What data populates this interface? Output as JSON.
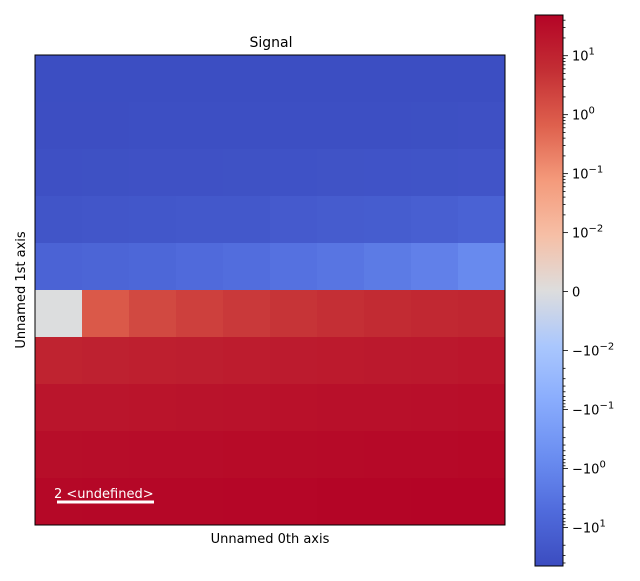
{
  "chart_data": {
    "type": "heatmap",
    "title": "Signal",
    "xlabel": "Unnamed 0th axis",
    "ylabel": "Unnamed 1st axis",
    "colormap": "coolwarm",
    "scale": "symlog",
    "linthresh": 0.01,
    "clim": [
      -45,
      49
    ],
    "rows": 10,
    "cols": 10,
    "values": [
      [
        -40,
        -40,
        -40,
        -40,
        -40,
        -40,
        -40,
        -39,
        -39,
        -39
      ],
      [
        -38,
        -38,
        -37,
        -37,
        -37,
        -37,
        -36,
        -36,
        -35,
        -34
      ],
      [
        -33,
        -32,
        -31,
        -31,
        -30,
        -29,
        -28,
        -27,
        -26,
        -25
      ],
      [
        -24,
        -23,
        -21,
        -20,
        -19,
        -17,
        -15,
        -14,
        -12,
        -10
      ],
      [
        -9,
        -8,
        -7,
        -5.5,
        -4.5,
        -3.6,
        -2.8,
        -2,
        -1.4,
        -0.8
      ],
      [
        0,
        0.9,
        1.8,
        2.6,
        3.5,
        4.4,
        5.4,
        6.5,
        7.6,
        8.8
      ],
      [
        10,
        11,
        12,
        13,
        14,
        15,
        16,
        17,
        18,
        19
      ],
      [
        20,
        21,
        22,
        23,
        24,
        25,
        26,
        27,
        28,
        29
      ],
      [
        30,
        31,
        32,
        33,
        34,
        35,
        36,
        37,
        38,
        39
      ],
      [
        40,
        41,
        42,
        43,
        44,
        45,
        46,
        47,
        48,
        49
      ]
    ],
    "colorbar": {
      "positive_ticks": [
        {
          "value": 10,
          "label": "10",
          "exp": "1"
        },
        {
          "value": 1,
          "label": "10",
          "exp": "0"
        },
        {
          "value": 0.1,
          "label": "10",
          "exp": "−1"
        },
        {
          "value": 0.01,
          "label": "10",
          "exp": "−2"
        }
      ],
      "zero_label": "0",
      "negative_ticks": [
        {
          "value": -0.01,
          "label": "−10",
          "exp": "−2"
        },
        {
          "value": -0.1,
          "label": "−10",
          "exp": "−1"
        },
        {
          "value": -1,
          "label": "−10",
          "exp": "0"
        },
        {
          "value": -10,
          "label": "−10",
          "exp": "1"
        }
      ]
    },
    "scalebar": {
      "label": "2 <undefined>",
      "color": "#ffffff"
    },
    "grid": false
  }
}
